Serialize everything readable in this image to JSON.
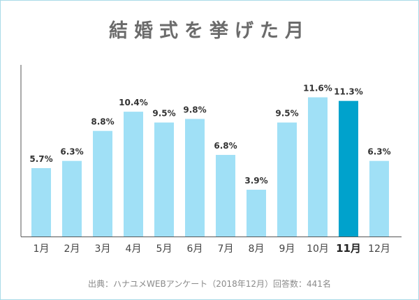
{
  "title": "結婚式を挙げた月",
  "source": "出典：ハナユメWEBアンケート（2018年12月）回答数：441名",
  "colors": {
    "bar": "#a0e0f6",
    "highlight": "#00a2cc",
    "value_text": "#333333",
    "axis": "#555555",
    "tick_text": "#444444"
  },
  "chart_data": {
    "type": "bar",
    "title": "結婚式を挙げた月",
    "xlabel": "",
    "ylabel": "",
    "categories": [
      "1月",
      "2月",
      "3月",
      "4月",
      "5月",
      "6月",
      "7月",
      "8月",
      "9月",
      "10月",
      "11月",
      "12月"
    ],
    "values": [
      5.7,
      6.3,
      8.8,
      10.4,
      9.5,
      9.8,
      6.8,
      3.9,
      9.5,
      11.6,
      11.3,
      6.3
    ],
    "value_labels": [
      "5.7%",
      "6.3%",
      "8.8%",
      "10.4%",
      "9.5%",
      "9.8%",
      "6.8%",
      "3.9%",
      "9.5%",
      "11.6%",
      "11.3%",
      "6.3%"
    ],
    "highlight_category": "11月",
    "ylim": [
      0,
      12
    ],
    "grid": false,
    "legend": "none"
  }
}
